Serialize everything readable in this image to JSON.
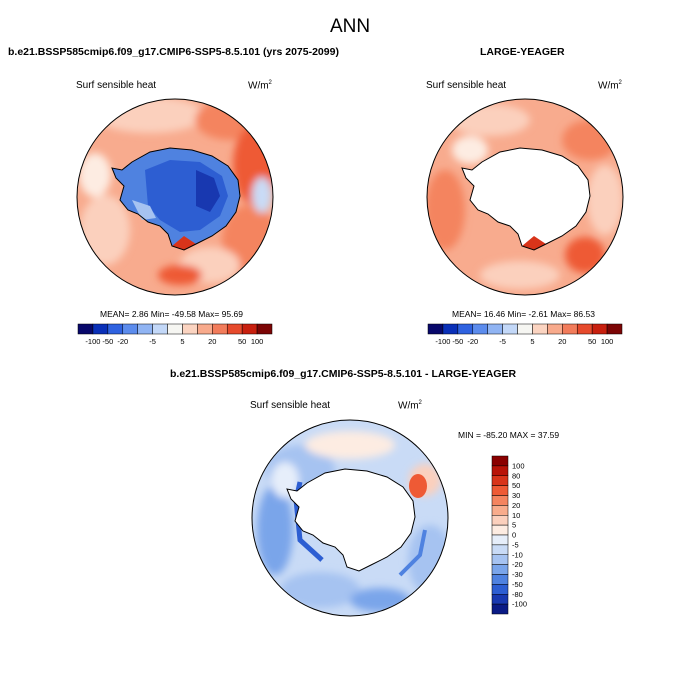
{
  "header": {
    "title": "ANN"
  },
  "panels": [
    {
      "case_title": "b.e21.BSSP585cmip6.f09_g17.CMIP6-SSP5-8.5.101 (yrs 2075-2099)",
      "variable": "Surf sensible heat",
      "units_base": "W/m",
      "units_exp": "2",
      "stats": "MEAN=   2.86  Min= -49.58  Max=  95.69"
    },
    {
      "case_title": "LARGE-YEAGER",
      "variable": "Surf sensible heat",
      "units_base": "W/m",
      "units_exp": "2",
      "stats": "MEAN=  16.46  Min=  -2.61  Max=  86.53"
    },
    {
      "case_title": "b.e21.BSSP585cmip6.f09_g17.CMIP6-SSP5-8.5.101 - LARGE-YEAGER",
      "variable": "Surf sensible heat",
      "units_base": "W/m",
      "units_exp": "2",
      "stats": "MIN = -85.20 MAX =  37.59"
    }
  ],
  "colorbars": {
    "horizontal_labels": [
      "-100",
      "-50",
      "-20",
      "-5",
      "5",
      "20",
      "50",
      "100"
    ],
    "horizontal_colors": [
      "#08086b",
      "#0a30b8",
      "#2f62e0",
      "#5c8ced",
      "#90b4f3",
      "#c3d8f8",
      "#f6f6f2",
      "#fbd4c1",
      "#f8aa8c",
      "#f27c5b",
      "#e64a2c",
      "#c8200f",
      "#7c0505"
    ],
    "vertical_labels": [
      "100",
      "80",
      "50",
      "30",
      "20",
      "10",
      "5",
      "0",
      "-5",
      "-10",
      "-20",
      "-30",
      "-50",
      "-80",
      "-100"
    ],
    "vertical_colors": [
      "#8a0000",
      "#b81308",
      "#d8341a",
      "#ee5a35",
      "#f4845f",
      "#f8ac8c",
      "#fbd0bd",
      "#fdece2",
      "#e6eefa",
      "#c9dbf6",
      "#a6c3f1",
      "#7aa5ea",
      "#4f82e0",
      "#2d5ed2",
      "#1838b0",
      "#0a1a85"
    ]
  }
}
